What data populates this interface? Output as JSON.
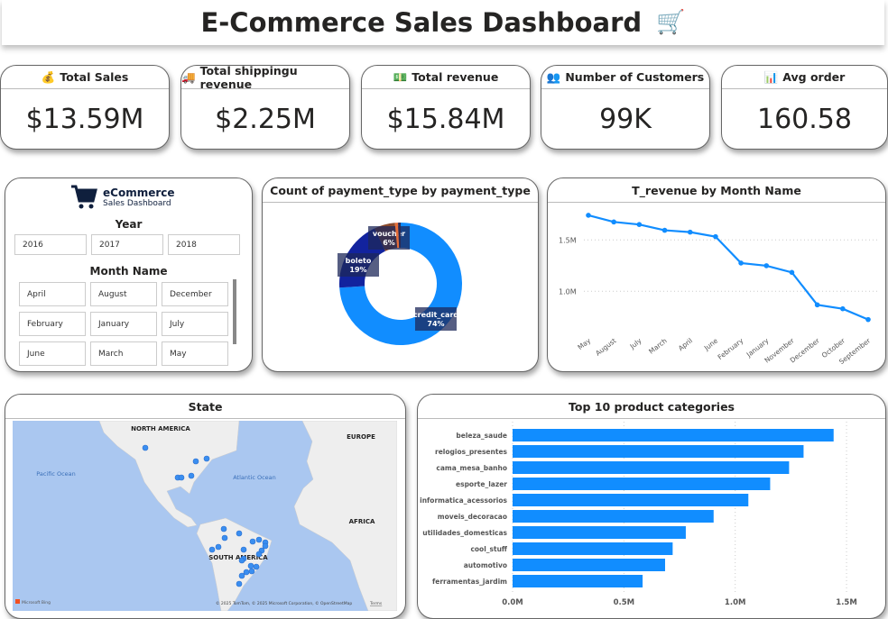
{
  "header": {
    "title": "E-Commerce Sales Dashboard",
    "icon": "shopping-cart-icon"
  },
  "kpis": [
    {
      "label": "Total Sales",
      "value": "$13.59M",
      "icon": "money-bag-icon"
    },
    {
      "label": "Total shippingu revenue",
      "value": "$2.25M",
      "icon": "truck-icon"
    },
    {
      "label": "Total revenue",
      "value": "$15.84M",
      "icon": "cash-icon"
    },
    {
      "label": "Number of Customers",
      "value": "99K",
      "icon": "people-icon"
    },
    {
      "label": "Avg order",
      "value": "160.58",
      "icon": "bar-chart-icon"
    }
  ],
  "slicer": {
    "logo_title": "eCommerce",
    "logo_subtitle": "Sales Dashboard",
    "year_label": "Year",
    "years": [
      "2016",
      "2017",
      "2018"
    ],
    "month_label": "Month Name",
    "months": [
      "April",
      "August",
      "December",
      "February",
      "January",
      "July",
      "June",
      "March",
      "May"
    ]
  },
  "map": {
    "title": "State",
    "labels": {
      "na": "NORTH AMERICA",
      "europe": "EUROPE",
      "africa": "AFRICA",
      "sa": "SOUTH AMERICA",
      "pacific": "Pacific Ocean",
      "atlantic": "Atlantic Ocean"
    },
    "brand": "Microsoft Bing",
    "attribution": "© 2025 TomTom, © 2025 Microsoft Corporation, © OpenStreetMap",
    "terms": "Terms",
    "colors": {
      "water": "#aac7f0",
      "land": "#eeeeee",
      "dot": "#3a8ef0"
    }
  },
  "chart_data": [
    {
      "type": "pie",
      "title": "Count of payment_type by payment_type",
      "donut": true,
      "slices": [
        {
          "name": "credit_card",
          "label": "74%",
          "value": 74,
          "color": "#118dff"
        },
        {
          "name": "boleto",
          "label": "19%",
          "value": 19,
          "color": "#12239e"
        },
        {
          "name": "voucher",
          "label": "6%",
          "value": 5.5,
          "color": "#8a4a2c"
        },
        {
          "name": "",
          "label": "",
          "value": 0.8,
          "color": "#e66c37"
        },
        {
          "name": "",
          "label": "",
          "value": 0.7,
          "color": "#2b2b55"
        }
      ]
    },
    {
      "type": "line",
      "title": "T_revenue by Month Name",
      "color": "#118dff",
      "categories": [
        "May",
        "August",
        "July",
        "March",
        "April",
        "June",
        "February",
        "January",
        "November",
        "December",
        "October",
        "September"
      ],
      "values": [
        1.74,
        1.675,
        1.65,
        1.594,
        1.576,
        1.532,
        1.275,
        1.249,
        1.184,
        0.868,
        0.83,
        0.725
      ],
      "yticks": [
        {
          "v": 1.5,
          "label": "1.5M"
        },
        {
          "v": 1.0,
          "label": "1.0M"
        }
      ],
      "grid": true
    },
    {
      "type": "bar",
      "orientation": "horizontal",
      "title": "Top 10 product categories",
      "color": "#118dff",
      "categories": [
        "beleza_saude",
        "relogios_presentes",
        "cama_mesa_banho",
        "esporte_lazer",
        "informatica_acessorios",
        "moveis_decoracao",
        "utilidades_domesticas",
        "cool_stuff",
        "automotivo",
        "ferramentas_jardim"
      ],
      "values": [
        1.442,
        1.307,
        1.242,
        1.157,
        1.059,
        0.903,
        0.778,
        0.719,
        0.685,
        0.584
      ],
      "xticks": [
        {
          "v": 0,
          "label": "0.0M"
        },
        {
          "v": 0.5,
          "label": "0.5M"
        },
        {
          "v": 1.0,
          "label": "1.0M"
        },
        {
          "v": 1.5,
          "label": "1.5M"
        }
      ],
      "grid": true
    }
  ]
}
